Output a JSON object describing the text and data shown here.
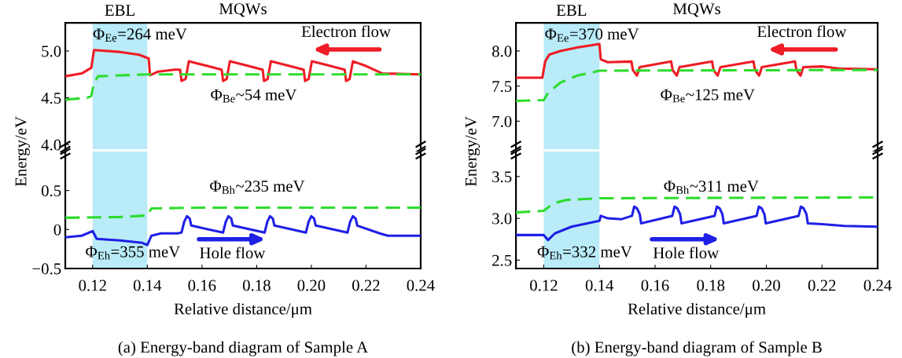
{
  "chart_data": [
    {
      "type": "line",
      "title": "MQWs",
      "xlim": [
        0.11,
        0.24
      ],
      "ylim": [
        3.95,
        5.3
      ],
      "yticks": [
        {
          "value": 4.0,
          "label": "4.0"
        },
        {
          "value": 4.5,
          "label": "4.5"
        },
        {
          "value": 5.0,
          "label": "5.0"
        }
      ],
      "tick_labels": "y",
      "grid": false,
      "legend": false,
      "bands": [
        {
          "axis": "x",
          "from": 0.12,
          "to": 0.14,
          "label": "EBL",
          "color": "#b9ebf8"
        }
      ],
      "series": [
        {
          "color": "#ee1c25",
          "line_style": "solid",
          "x": [
            0.11,
            0.116,
            0.1195,
            0.1205,
            0.13,
            0.137,
            0.1405,
            0.141,
            0.144,
            0.15,
            0.152,
            0.1525,
            0.154,
            0.1552,
            0.162,
            0.1672,
            0.1677,
            0.169,
            0.1702,
            0.177,
            0.1822,
            0.1827,
            0.184,
            0.1852,
            0.192,
            0.1972,
            0.1977,
            0.199,
            0.2002,
            0.207,
            0.2122,
            0.2127,
            0.214,
            0.2152,
            0.22,
            0.226,
            0.24
          ],
          "values": [
            4.73,
            4.76,
            4.82,
            5.01,
            4.99,
            4.96,
            4.92,
            4.74,
            4.78,
            4.8,
            4.8,
            4.68,
            4.7,
            4.89,
            4.84,
            4.8,
            4.68,
            4.7,
            4.89,
            4.84,
            4.8,
            4.68,
            4.7,
            4.89,
            4.84,
            4.8,
            4.68,
            4.7,
            4.89,
            4.84,
            4.8,
            4.68,
            4.7,
            4.89,
            4.84,
            4.76,
            4.75
          ]
        },
        {
          "color": "#2ddc2d",
          "line_style": "dashed",
          "x": [
            0.11,
            0.118,
            0.1195,
            0.1205,
            0.122,
            0.14,
            0.24
          ],
          "values": [
            4.48,
            4.5,
            4.52,
            4.66,
            4.73,
            4.75,
            4.75
          ]
        }
      ],
      "annotations": [
        "Φ$_{Ee}$=264 meV",
        "Electron flow",
        "Φ$_{Be}$~54 meV"
      ]
    },
    {
      "type": "line",
      "xlabel": "Relative distance/μm",
      "ylabel": "Energy/eV",
      "xlim": [
        0.11,
        0.24
      ],
      "ylim": [
        -0.5,
        1.0
      ],
      "xticks": [
        {
          "value": 0.12,
          "label": "0.12"
        },
        {
          "value": 0.14,
          "label": "0.14"
        },
        {
          "value": 0.16,
          "label": "0.16"
        },
        {
          "value": 0.18,
          "label": "0.18"
        },
        {
          "value": 0.2,
          "label": "0.20"
        },
        {
          "value": 0.22,
          "label": "0.22"
        },
        {
          "value": 0.24,
          "label": "0.24"
        }
      ],
      "yticks": [
        {
          "value": -0.5,
          "label": "−0.5"
        },
        0,
        {
          "value": 0.5,
          "label": "0.5"
        }
      ],
      "grid": false,
      "legend": false,
      "bands": [
        {
          "axis": "x",
          "from": 0.12,
          "to": 0.14,
          "color": "#b9ebf8"
        }
      ],
      "series": [
        {
          "color": "#1f1fe6",
          "line_style": "solid",
          "x": [
            0.11,
            0.116,
            0.12,
            0.1215,
            0.13,
            0.138,
            0.14,
            0.1415,
            0.145,
            0.151,
            0.1525,
            0.1535,
            0.1545,
            0.1555,
            0.1561,
            0.1677,
            0.1687,
            0.1697,
            0.1707,
            0.1713,
            0.1829,
            0.1839,
            0.1849,
            0.1859,
            0.1865,
            0.198,
            0.199,
            0.2,
            0.201,
            0.2016,
            0.2132,
            0.2142,
            0.2152,
            0.2162,
            0.2168,
            0.225,
            0.228,
            0.24
          ],
          "values": [
            -0.1,
            -0.08,
            -0.02,
            -0.12,
            -0.14,
            -0.17,
            -0.2,
            -0.08,
            -0.05,
            -0.05,
            -0.04,
            0.1,
            0.17,
            0.14,
            0.05,
            -0.04,
            0.1,
            0.17,
            0.14,
            0.05,
            -0.04,
            0.1,
            0.17,
            0.14,
            0.05,
            -0.04,
            0.1,
            0.17,
            0.14,
            0.05,
            -0.04,
            0.1,
            0.17,
            0.14,
            0.05,
            -0.05,
            -0.08,
            -0.08
          ]
        },
        {
          "color": "#2ddc2d",
          "line_style": "dashed",
          "x": [
            0.11,
            0.13,
            0.14,
            0.1415,
            0.16,
            0.24
          ],
          "values": [
            0.15,
            0.16,
            0.18,
            0.27,
            0.28,
            0.28
          ]
        }
      ],
      "annotations": [
        "Φ$_{Bh}$~235 meV",
        "Hole flow",
        "Φ$_{Eh}$=355 meV",
        "(a) Energy-band diagram of Sample A"
      ]
    },
    {
      "type": "line",
      "title": "MQWs",
      "xlim": [
        0.11,
        0.24
      ],
      "ylim": [
        6.6,
        8.4
      ],
      "yticks": [
        {
          "value": 7.0,
          "label": "7.0"
        },
        {
          "value": 7.5,
          "label": "7.5"
        },
        {
          "value": 8.0,
          "label": "8.0"
        }
      ],
      "tick_labels": "y",
      "grid": false,
      "legend": false,
      "bands": [
        {
          "axis": "x",
          "from": 0.12,
          "to": 0.14,
          "label": "EBL",
          "color": "#b9ebf8"
        }
      ],
      "series": [
        {
          "color": "#ee1c25",
          "line_style": "solid",
          "x": [
            0.11,
            0.1195,
            0.1205,
            0.122,
            0.126,
            0.132,
            0.137,
            0.14,
            0.1405,
            0.143,
            0.1515,
            0.152,
            0.1535,
            0.1545,
            0.1658,
            0.1663,
            0.1678,
            0.1688,
            0.1805,
            0.181,
            0.1825,
            0.1835,
            0.1954,
            0.1959,
            0.1974,
            0.1984,
            0.2103,
            0.2108,
            0.2123,
            0.2133,
            0.22,
            0.226,
            0.24
          ],
          "values": [
            7.62,
            7.62,
            7.85,
            7.95,
            8.0,
            8.05,
            8.08,
            8.1,
            7.88,
            7.84,
            7.85,
            7.73,
            7.65,
            7.77,
            7.85,
            7.73,
            7.65,
            7.77,
            7.85,
            7.73,
            7.65,
            7.77,
            7.85,
            7.73,
            7.65,
            7.77,
            7.85,
            7.73,
            7.65,
            7.77,
            7.78,
            7.75,
            7.74
          ]
        },
        {
          "color": "#2ddc2d",
          "line_style": "dashed",
          "x": [
            0.11,
            0.12,
            0.1215,
            0.126,
            0.132,
            0.138,
            0.14,
            0.24
          ],
          "values": [
            7.29,
            7.3,
            7.4,
            7.55,
            7.65,
            7.7,
            7.72,
            7.73
          ]
        }
      ],
      "annotations": [
        "Φ$_{Ee}$=370 meV",
        "Electron flow",
        "Φ$_{Be}$~125 meV"
      ]
    },
    {
      "type": "line",
      "xlabel": "Relative distance/μm",
      "ylabel": "Energy/eV",
      "xlim": [
        0.11,
        0.24
      ],
      "ylim": [
        2.4,
        3.8
      ],
      "xticks": [
        {
          "value": 0.12,
          "label": "0.12"
        },
        {
          "value": 0.14,
          "label": "0.14"
        },
        {
          "value": 0.16,
          "label": "0.16"
        },
        {
          "value": 0.18,
          "label": "0.18"
        },
        {
          "value": 0.2,
          "label": "0.20"
        },
        {
          "value": 0.22,
          "label": "0.22"
        },
        {
          "value": 0.24,
          "label": "0.24"
        }
      ],
      "yticks": [
        2.5,
        {
          "value": 3.0,
          "label": "3.0"
        },
        3.5
      ],
      "grid": false,
      "legend": false,
      "bands": [
        {
          "axis": "x",
          "from": 0.12,
          "to": 0.14,
          "color": "#b9ebf8"
        }
      ],
      "series": [
        {
          "color": "#1f1fe6",
          "line_style": "solid",
          "x": [
            0.11,
            0.12,
            0.1215,
            0.124,
            0.13,
            0.137,
            0.14,
            0.1405,
            0.143,
            0.148,
            0.1517,
            0.1525,
            0.1535,
            0.1545,
            0.155,
            0.1662,
            0.167,
            0.168,
            0.169,
            0.1695,
            0.1814,
            0.1822,
            0.1832,
            0.1842,
            0.1847,
            0.1965,
            0.1973,
            0.1983,
            0.1993,
            0.1998,
            0.2116,
            0.2124,
            0.2134,
            0.2144,
            0.2149,
            0.22,
            0.228,
            0.24
          ],
          "values": [
            2.8,
            2.8,
            2.74,
            2.82,
            2.9,
            2.95,
            2.97,
            3.03,
            3.0,
            2.99,
            3.03,
            3.14,
            3.12,
            3.05,
            2.94,
            3.03,
            3.14,
            3.12,
            3.05,
            2.94,
            3.03,
            3.14,
            3.12,
            3.05,
            2.94,
            3.03,
            3.14,
            3.12,
            3.05,
            2.94,
            3.03,
            3.14,
            3.12,
            3.05,
            2.94,
            2.93,
            2.91,
            2.9
          ]
        },
        {
          "color": "#2ddc2d",
          "line_style": "dashed",
          "x": [
            0.11,
            0.12,
            0.1235,
            0.128,
            0.14,
            0.24
          ],
          "values": [
            3.07,
            3.09,
            3.18,
            3.22,
            3.24,
            3.25
          ]
        }
      ],
      "annotations": [
        "Φ$_{Bh}$~311 meV",
        "Hole flow",
        "Φ$_{Eh}$=332 meV",
        "(b) Energy-band diagram of Sample B"
      ]
    }
  ]
}
